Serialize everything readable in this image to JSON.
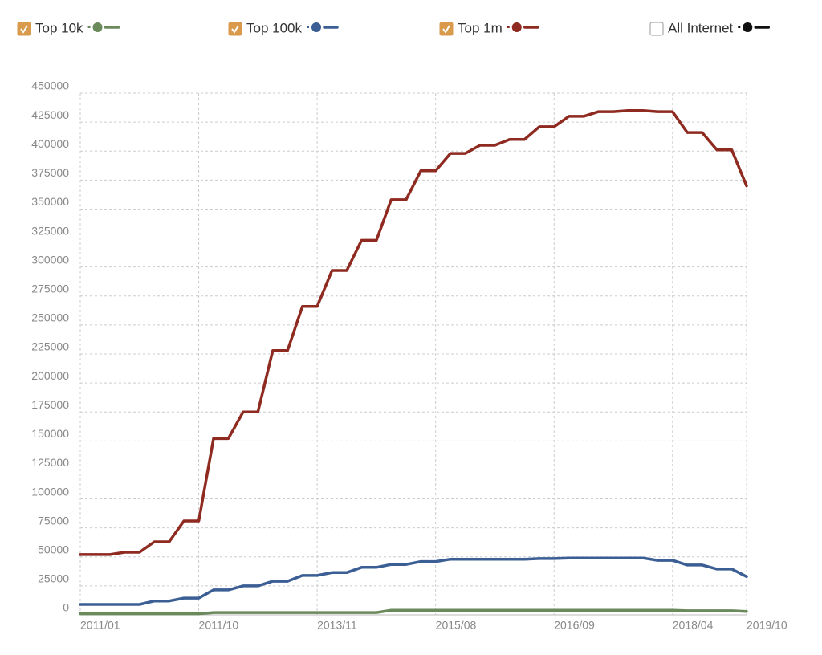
{
  "chart_data": {
    "type": "line",
    "categories": [
      "2011/01",
      null,
      null,
      null,
      null,
      null,
      null,
      null,
      "2011/10",
      null,
      null,
      null,
      null,
      null,
      null,
      null,
      "2013/11",
      null,
      null,
      null,
      null,
      null,
      null,
      null,
      "2015/08",
      null,
      null,
      null,
      null,
      null,
      null,
      null,
      "2016/09",
      null,
      null,
      null,
      null,
      null,
      null,
      null,
      "2018/04",
      null,
      null,
      null,
      null,
      "2019/10"
    ],
    "series": [
      {
        "name": "Top 10k",
        "color": "#6a8a5c",
        "checked": true,
        "values": [
          1000,
          1000,
          1000,
          1000,
          1000,
          1000,
          1000,
          1000,
          1000,
          2000,
          2000,
          2000,
          2000,
          2000,
          2000,
          2000,
          2000,
          2000,
          2000,
          2000,
          2000,
          4000,
          4000,
          4000,
          4000,
          4000,
          4000,
          4000,
          4000,
          4000,
          4000,
          4000,
          4000,
          4000,
          4000,
          4000,
          4000,
          4000,
          4000,
          4000,
          4000,
          3500,
          3500,
          3500,
          3500,
          3000
        ]
      },
      {
        "name": "Top 100k",
        "color": "#3b5f94",
        "checked": true,
        "values": [
          9000,
          9000,
          9000,
          9000,
          9000,
          12000,
          12000,
          14500,
          14500,
          21500,
          21500,
          25000,
          25000,
          29000,
          29000,
          34000,
          34000,
          36500,
          36500,
          41000,
          41000,
          43500,
          43500,
          46000,
          46000,
          48000,
          48000,
          48000,
          48000,
          48000,
          48000,
          48500,
          48500,
          49000,
          49000,
          49000,
          49000,
          49000,
          49000,
          47000,
          47000,
          43000,
          43000,
          39500,
          39500,
          33000
        ]
      },
      {
        "name": "Top 1m",
        "color": "#8e2a20",
        "checked": true,
        "values": [
          52000,
          52000,
          52000,
          54000,
          54000,
          63000,
          63000,
          81000,
          81000,
          152000,
          152000,
          175000,
          175000,
          228000,
          228000,
          266000,
          266000,
          297000,
          297000,
          323000,
          323000,
          358000,
          358000,
          383000,
          383000,
          398000,
          398000,
          405000,
          405000,
          410000,
          410000,
          421000,
          421000,
          430000,
          430000,
          434000,
          434000,
          435000,
          435000,
          434000,
          434000,
          416000,
          416000,
          401000,
          401000,
          370000
        ]
      },
      {
        "name": "All Internet",
        "color": "#111111",
        "checked": false,
        "values": [
          null,
          null,
          null,
          null,
          null,
          null,
          null,
          null,
          null,
          null,
          null,
          null,
          null,
          null,
          null,
          null,
          null,
          null,
          null,
          null,
          null,
          null,
          null,
          null,
          null,
          null,
          null,
          null,
          null,
          null,
          null,
          null,
          null,
          null,
          null,
          null,
          null,
          null,
          null,
          null,
          null,
          null,
          null,
          null,
          null,
          null
        ]
      }
    ],
    "ylim": [
      0,
      450000
    ],
    "yticks": [
      0,
      25000,
      50000,
      75000,
      100000,
      125000,
      150000,
      175000,
      200000,
      225000,
      250000,
      275000,
      300000,
      325000,
      350000,
      375000,
      400000,
      425000,
      450000
    ],
    "grid": true
  }
}
